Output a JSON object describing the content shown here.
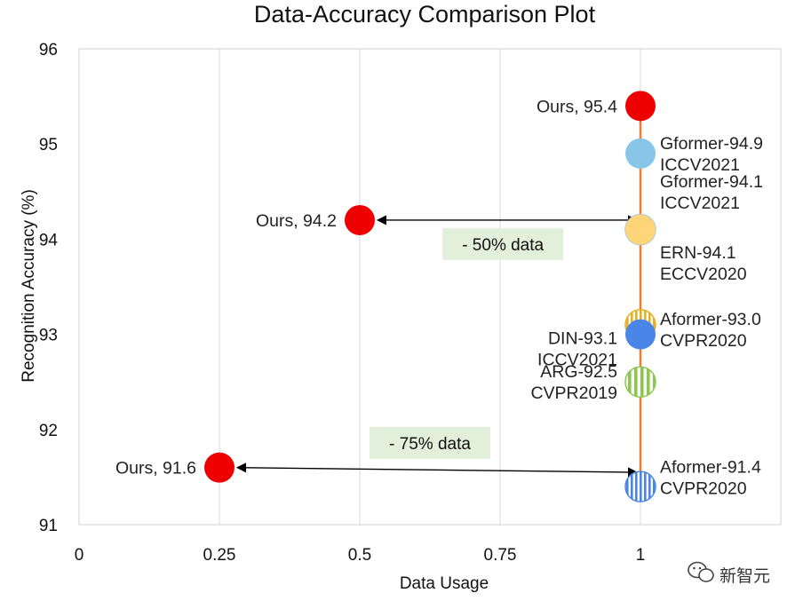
{
  "chart_data": {
    "type": "scatter",
    "title": "Data-Accuracy Comparison Plot",
    "xlabel": "Data Usage",
    "ylabel": "Recognition Accuracy (%)",
    "xlim": [
      0,
      1.25
    ],
    "ylim": [
      91,
      96
    ],
    "x_ticks": [
      0,
      0.25,
      0.5,
      0.75,
      1
    ],
    "x_tick_labels": [
      "0",
      "0.25",
      "0.5",
      "0.75",
      "1"
    ],
    "y_ticks": [
      91,
      92,
      93,
      94,
      95,
      96
    ],
    "y_tick_labels": [
      "91",
      "92",
      "93",
      "94",
      "95",
      "96"
    ],
    "grid": "vertical",
    "reference_line": {
      "x": 1,
      "y_from": 91.4,
      "y_to": 95.4,
      "color": "#ED7D31"
    },
    "points": [
      {
        "x": 1,
        "y": 94.1,
        "pattern": "stripes",
        "color": "#9DC3E6",
        "label": [
          "Gformer-94.1",
          "ICCV2021"
        ],
        "label_side": "right",
        "label_dy": 0.4
      },
      {
        "x": 1,
        "y": 94.1,
        "pattern": "solid",
        "color": "#FFD57A",
        "label": [
          "ERN-94.1",
          "ECCV2020"
        ],
        "label_side": "right",
        "label_dy": -0.35
      },
      {
        "x": 1,
        "y": 93.1,
        "pattern": "stripes",
        "color": "#E6B020",
        "label": [
          "DIN-93.1",
          "ICCV2021"
        ],
        "label_side": "left",
        "label_dy": -0.25
      },
      {
        "x": 1,
        "y": 93.0,
        "pattern": "solid",
        "color": "#4A86E8",
        "label": [
          "Aformer-93.0",
          "CVPR2020"
        ],
        "label_side": "right",
        "label_dy": 0.05
      },
      {
        "x": 1,
        "y": 92.5,
        "pattern": "stripes",
        "color": "#8CC850",
        "label": [
          "ARG-92.5",
          "CVPR2019"
        ],
        "label_side": "left",
        "label_dy": 0
      },
      {
        "x": 1,
        "y": 91.4,
        "pattern": "stripes",
        "color": "#4A86E8",
        "label": [
          "Aformer-91.4",
          "CVPR2020"
        ],
        "label_side": "right",
        "label_dy": 0.1
      },
      {
        "x": 1,
        "y": 94.9,
        "pattern": "solid",
        "color": "#87C6E8",
        "label": [
          "Gformer-94.9",
          "ICCV2021"
        ],
        "label_side": "right",
        "label_dy": 0
      },
      {
        "x": 1,
        "y": 95.4,
        "pattern": "solid",
        "color": "#EE0000",
        "label": [
          "Ours, 95.4"
        ],
        "label_side": "left",
        "label_dy": 0
      },
      {
        "x": 0.5,
        "y": 94.2,
        "pattern": "solid",
        "color": "#EE0000",
        "label": [
          "Ours, 94.2"
        ],
        "label_side": "left",
        "label_dy": 0
      },
      {
        "x": 0.25,
        "y": 91.6,
        "pattern": "solid",
        "color": "#EE0000",
        "label": [
          "Ours, 91.6"
        ],
        "label_side": "left",
        "label_dy": 0
      }
    ],
    "arrows": [
      {
        "from": [
          0.5,
          94.2
        ],
        "to": [
          1,
          94.2
        ]
      },
      {
        "from": [
          0.25,
          91.6
        ],
        "to": [
          1,
          91.55
        ]
      }
    ],
    "callouts": [
      {
        "text": "- 50% data",
        "x": 0.755,
        "y": 93.95
      },
      {
        "text": "- 75% data",
        "x": 0.625,
        "y": 91.86
      }
    ]
  },
  "watermark": {
    "text": "新智元",
    "icon": "wechat-icon"
  }
}
